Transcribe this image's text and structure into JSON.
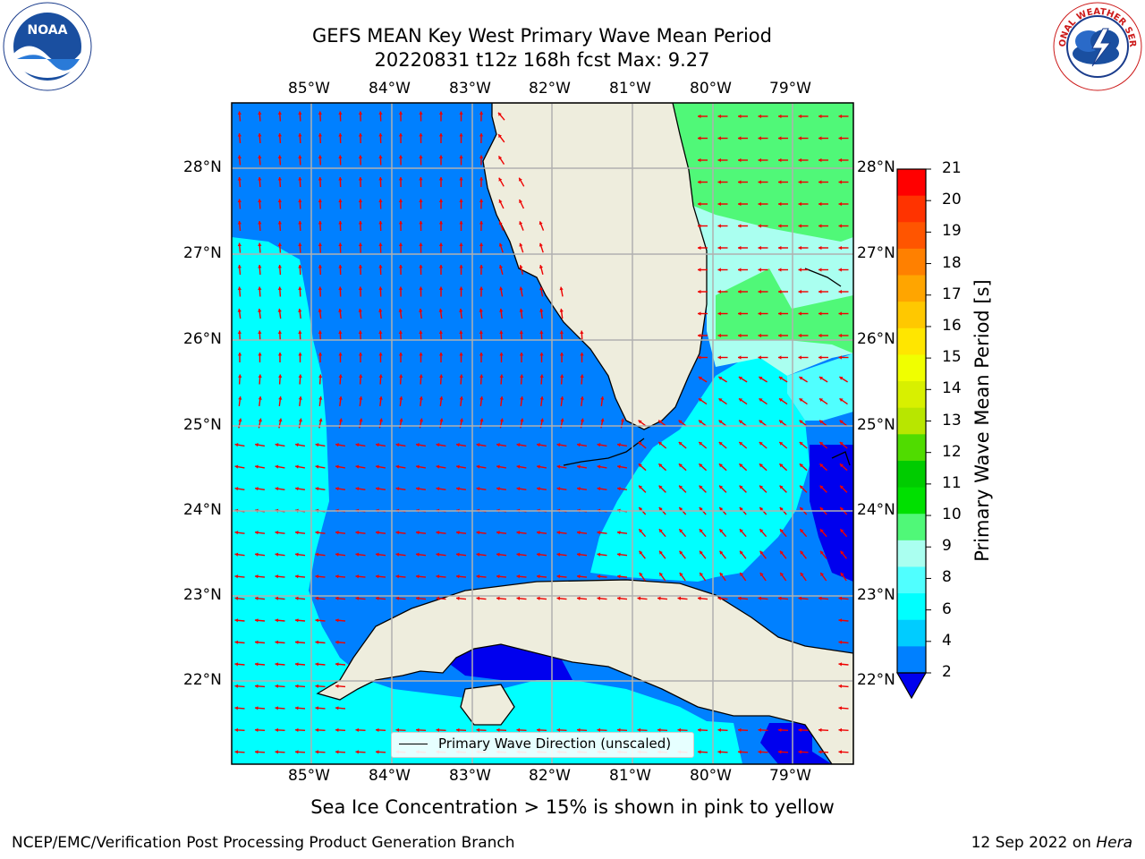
{
  "title": {
    "line1": "GEFS MEAN Key West Primary Wave Mean Period",
    "line2": "20220831 t12z 168h fcst   Max: 9.27"
  },
  "axes": {
    "lon_labels": [
      "85°W",
      "84°W",
      "83°W",
      "82°W",
      "81°W",
      "80°W",
      "79°W"
    ],
    "lat_labels": [
      "28°N",
      "27°N",
      "26°N",
      "25°N",
      "24°N",
      "23°N",
      "22°N"
    ]
  },
  "legend": {
    "label": "Primary Wave Direction (unscaled)"
  },
  "colorbar": {
    "label": "Primary Wave Mean Period [s]",
    "ticks": [
      "21",
      "20",
      "19",
      "18",
      "17",
      "16",
      "15",
      "14",
      "13",
      "12",
      "11",
      "10",
      "9",
      "8",
      "6",
      "4",
      "2"
    ],
    "colors": [
      "#ff0000",
      "#ff3300",
      "#ff5500",
      "#ff8000",
      "#ffa500",
      "#ffc800",
      "#ffe600",
      "#f0ff00",
      "#d8f000",
      "#b8e600",
      "#50dc00",
      "#00cc00",
      "#00e000",
      "#50f878",
      "#aafff0",
      "#50ffff",
      "#00ffff",
      "#00ccff",
      "#0080ff"
    ]
  },
  "note": "Sea Ice Concentration > 15% is shown in pink to yellow",
  "footer": {
    "left": "NCEP/EMC/Verification Post Processing Product Generation Branch",
    "right_date": "12 Sep 2022 on",
    "right_host": "Hera"
  },
  "logos": {
    "left": "NOAA",
    "right": "NATIONAL WEATHER SERVICE"
  },
  "colors": {
    "land": "#eeeddd",
    "period_2_4": "#0080ff",
    "period_4_6": "#00ffff",
    "period_6_8": "#50ffff",
    "period_8_9": "#aafff0",
    "period_9_10": "#50f878",
    "period_lt_2": "#0000ee",
    "arrow": "#ee0000",
    "grid": "#b0b0b0"
  }
}
